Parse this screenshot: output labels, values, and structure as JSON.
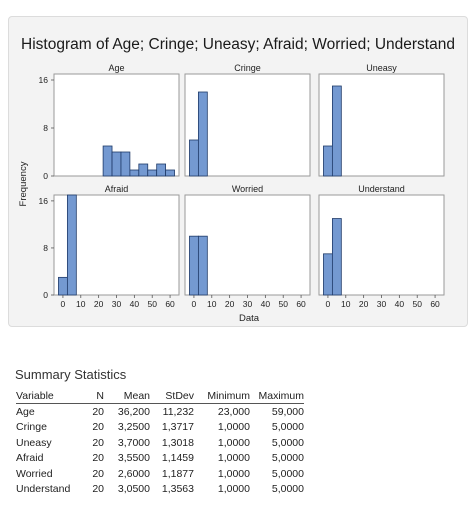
{
  "chart_data": {
    "type": "bar",
    "title": "Histogram of Age; Cringe; Uneasy; Afraid; Worried; Understand",
    "xlabel": "Data",
    "ylabel": "Frequency",
    "xticks": [
      "0",
      "10",
      "20",
      "30",
      "40",
      "50",
      "60"
    ],
    "xlim": [
      -5,
      65
    ],
    "bin_width": 5,
    "ylim": [
      0,
      17
    ],
    "yticks": [
      "0",
      "8",
      "16"
    ],
    "gridlines": false,
    "panels": [
      {
        "name": "Age",
        "bins": [
          {
            "start": 22.5,
            "count": 5
          },
          {
            "start": 27.5,
            "count": 4
          },
          {
            "start": 32.5,
            "count": 4
          },
          {
            "start": 37.5,
            "count": 1
          },
          {
            "start": 42.5,
            "count": 2
          },
          {
            "start": 47.5,
            "count": 1
          },
          {
            "start": 52.5,
            "count": 2
          },
          {
            "start": 57.5,
            "count": 1
          }
        ]
      },
      {
        "name": "Cringe",
        "bins": [
          {
            "start": -2.5,
            "count": 6
          },
          {
            "start": 2.5,
            "count": 14
          }
        ]
      },
      {
        "name": "Uneasy",
        "bins": [
          {
            "start": -2.5,
            "count": 5
          },
          {
            "start": 2.5,
            "count": 15
          }
        ]
      },
      {
        "name": "Afraid",
        "bins": [
          {
            "start": -2.5,
            "count": 3
          },
          {
            "start": 2.5,
            "count": 17
          }
        ]
      },
      {
        "name": "Worried",
        "bins": [
          {
            "start": -2.5,
            "count": 10
          },
          {
            "start": 2.5,
            "count": 10
          }
        ]
      },
      {
        "name": "Understand",
        "bins": [
          {
            "start": -2.5,
            "count": 7
          },
          {
            "start": 2.5,
            "count": 13
          }
        ]
      }
    ],
    "colors": {
      "bar_fill": "#7499d1",
      "bar_stroke": "#1f3a68"
    }
  },
  "summary": {
    "title": "Summary Statistics",
    "headers": [
      "Variable",
      "N",
      "Mean",
      "StDev",
      "Minimum",
      "Maximum"
    ],
    "rows": [
      [
        "Age",
        "20",
        "36,200",
        "11,232",
        "23,000",
        "59,000"
      ],
      [
        "Cringe",
        "20",
        "3,2500",
        "1,3717",
        "1,0000",
        "5,0000"
      ],
      [
        "Uneasy",
        "20",
        "3,7000",
        "1,3018",
        "1,0000",
        "5,0000"
      ],
      [
        "Afraid",
        "20",
        "3,5500",
        "1,1459",
        "1,0000",
        "5,0000"
      ],
      [
        "Worried",
        "20",
        "2,6000",
        "1,1877",
        "1,0000",
        "5,0000"
      ],
      [
        "Understand",
        "20",
        "3,0500",
        "1,3563",
        "1,0000",
        "5,0000"
      ]
    ]
  }
}
